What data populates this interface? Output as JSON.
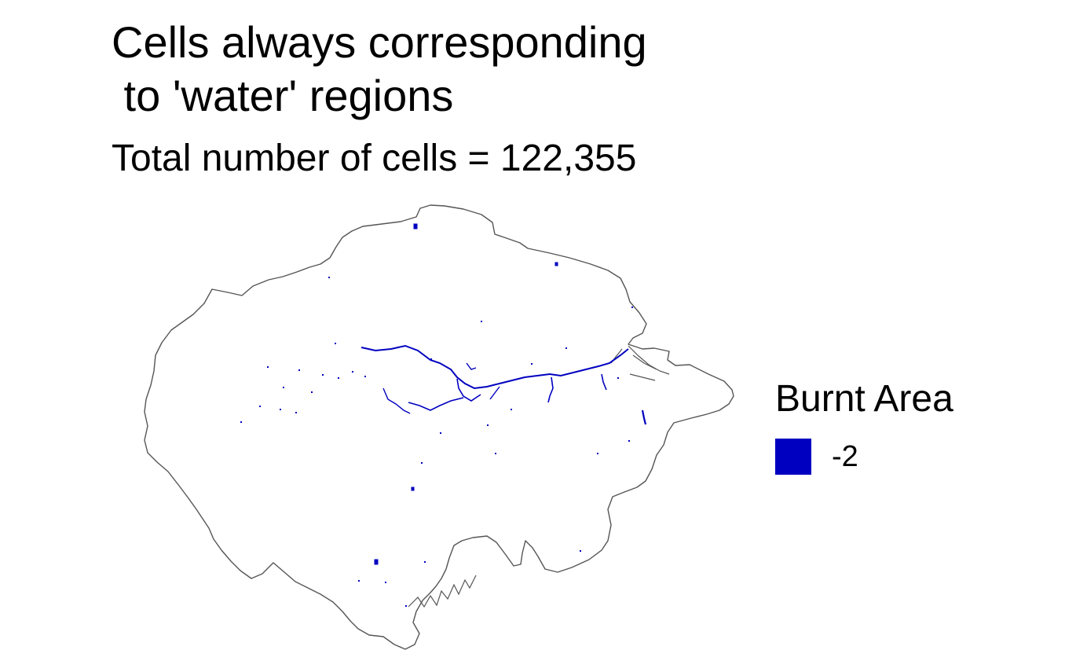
{
  "title": "Cells always corresponding\n to 'water' regions",
  "subtitle": "Total number of cells = 122,355",
  "legend": {
    "title": "Burnt Area",
    "items": [
      {
        "label": "-2",
        "color": "#0000c0"
      }
    ]
  },
  "colors": {
    "boundary": "#555555",
    "water": "#0000c0",
    "background": "#ffffff"
  }
}
